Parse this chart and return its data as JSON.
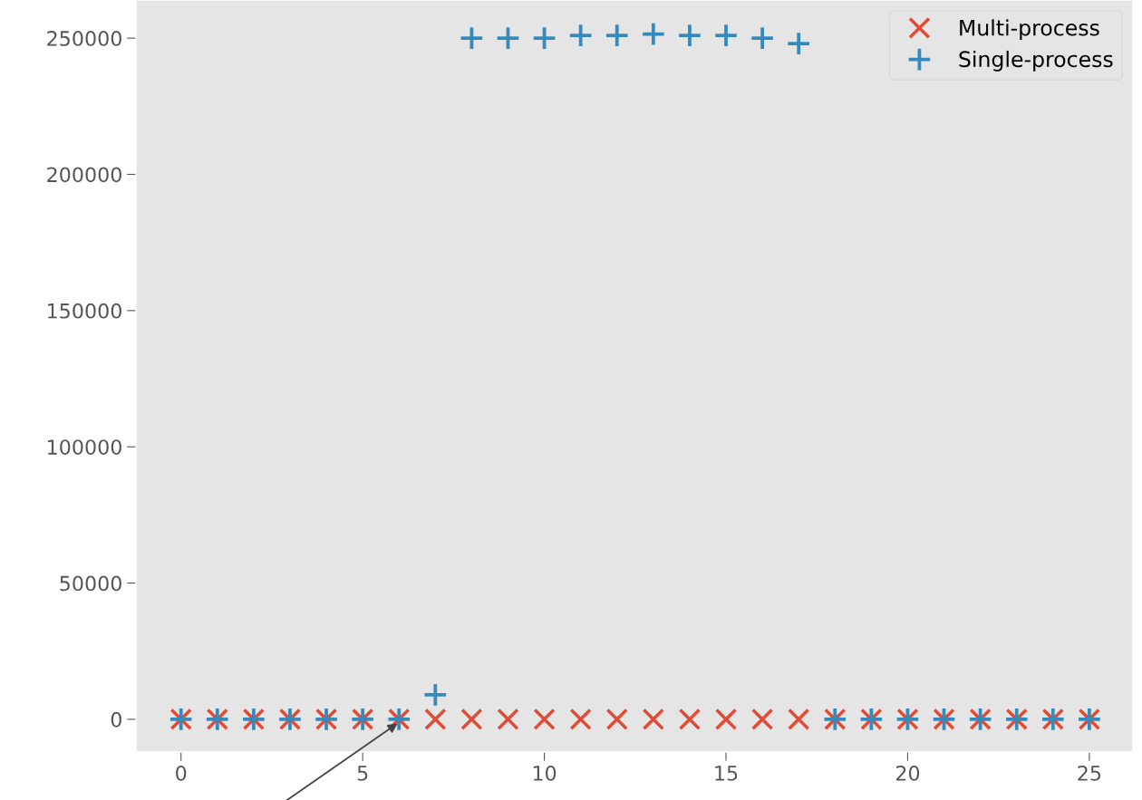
{
  "chart_data": {
    "type": "scatter",
    "x": [
      0,
      1,
      2,
      3,
      4,
      5,
      6,
      7,
      8,
      9,
      10,
      11,
      12,
      13,
      14,
      15,
      16,
      17,
      18,
      19,
      20,
      21,
      22,
      23,
      24,
      25
    ],
    "series": [
      {
        "name": "Multi-process",
        "color": "#e24a33",
        "marker": "cross",
        "values": [
          0,
          0,
          0,
          0,
          0,
          0,
          0,
          0,
          0,
          0,
          0,
          0,
          0,
          0,
          0,
          0,
          0,
          0,
          0,
          0,
          0,
          0,
          0,
          0,
          0,
          0
        ]
      },
      {
        "name": "Single-process",
        "color": "#348abd",
        "marker": "plus",
        "values": [
          0,
          0,
          0,
          0,
          0,
          0,
          0,
          9000,
          250000,
          250000,
          250000,
          251000,
          251000,
          251500,
          251000,
          251000,
          250000,
          248000,
          0,
          0,
          0,
          0,
          0,
          0,
          0,
          0
        ]
      }
    ],
    "xlim": [
      -1.24,
      26.2
    ],
    "ylim": [
      -12000,
      264000
    ],
    "xticks": [
      0,
      5,
      10,
      15,
      20,
      25
    ],
    "yticks": [
      0,
      50000,
      100000,
      150000,
      200000,
      250000
    ],
    "grid": false,
    "legend": "top right"
  }
}
